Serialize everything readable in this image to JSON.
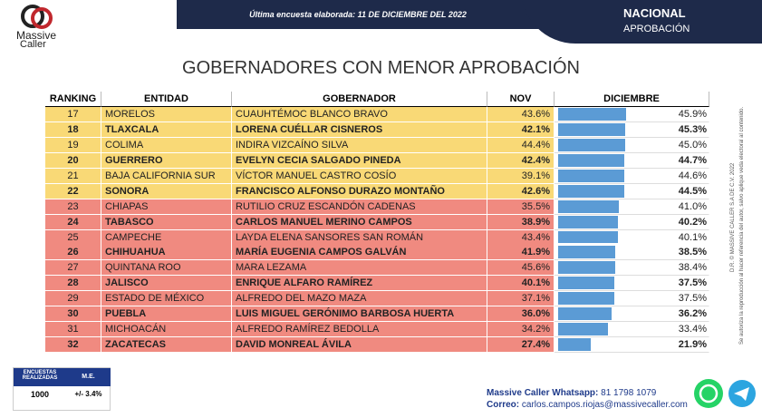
{
  "header": {
    "logo_top": "Massive",
    "logo_bottom": "Caller",
    "survey_label": "Última encuesta elaborada:",
    "survey_date": "11 DE DICIEMBRE DEL 2022",
    "scope": "NACIONAL",
    "metric": "APROBACIÓN"
  },
  "title": "GOBERNADORES CON MENOR APROBACIÓN",
  "table": {
    "columns": [
      "RANKING",
      "ENTIDAD",
      "GOBERNADOR",
      "NOV",
      "DICIEMBRE"
    ],
    "bar_color": "#5b9bd5",
    "rows": [
      {
        "rank": 17,
        "entidad": "MORELOS",
        "gobernador": "CUAUHTÉMOC BLANCO BRAVO",
        "nov": "43.6%",
        "dic": {
          "value": 45.9,
          "label": "45.9%"
        },
        "bold": false,
        "color": "#f9d976"
      },
      {
        "rank": 18,
        "entidad": "TLAXCALA",
        "gobernador": "LORENA CUÉLLAR CISNEROS",
        "nov": "42.1%",
        "dic": {
          "value": 45.3,
          "label": "45.3%"
        },
        "bold": true,
        "color": "#f9d976"
      },
      {
        "rank": 19,
        "entidad": "COLIMA",
        "gobernador": "INDIRA VIZCAÍNO SILVA",
        "nov": "44.4%",
        "dic": {
          "value": 45.0,
          "label": "45.0%"
        },
        "bold": false,
        "color": "#f9d976"
      },
      {
        "rank": 20,
        "entidad": "GUERRERO",
        "gobernador": "EVELYN CECIA SALGADO PINEDA",
        "nov": "42.4%",
        "dic": {
          "value": 44.7,
          "label": "44.7%"
        },
        "bold": true,
        "color": "#f9d976"
      },
      {
        "rank": 21,
        "entidad": "BAJA CALIFORNIA SUR",
        "gobernador": "VÍCTOR MANUEL CASTRO COSÍO",
        "nov": "39.1%",
        "dic": {
          "value": 44.6,
          "label": "44.6%"
        },
        "bold": false,
        "color": "#f9d976"
      },
      {
        "rank": 22,
        "entidad": "SONORA",
        "gobernador": "FRANCISCO ALFONSO DURAZO MONTAÑO",
        "nov": "42.6%",
        "dic": {
          "value": 44.5,
          "label": "44.5%"
        },
        "bold": true,
        "color": "#f9d976"
      },
      {
        "rank": 23,
        "entidad": "CHIAPAS",
        "gobernador": "RUTILIO CRUZ ESCANDÓN CADENAS",
        "nov": "35.5%",
        "dic": {
          "value": 41.0,
          "label": "41.0%"
        },
        "bold": false,
        "color": "#f08a80"
      },
      {
        "rank": 24,
        "entidad": "TABASCO",
        "gobernador": "CARLOS MANUEL MERINO CAMPOS",
        "nov": "38.9%",
        "dic": {
          "value": 40.2,
          "label": "40.2%"
        },
        "bold": true,
        "color": "#f08a80"
      },
      {
        "rank": 25,
        "entidad": "CAMPECHE",
        "gobernador": "LAYDA ELENA SANSORES SAN ROMÁN",
        "nov": "43.4%",
        "dic": {
          "value": 40.1,
          "label": "40.1%"
        },
        "bold": false,
        "color": "#f08a80"
      },
      {
        "rank": 26,
        "entidad": "CHIHUAHUA",
        "gobernador": "MARÍA EUGENIA CAMPOS GALVÁN",
        "nov": "41.9%",
        "dic": {
          "value": 38.5,
          "label": "38.5%"
        },
        "bold": true,
        "color": "#f08a80"
      },
      {
        "rank": 27,
        "entidad": "QUINTANA ROO",
        "gobernador": "MARA LEZAMA",
        "nov": "45.6%",
        "dic": {
          "value": 38.4,
          "label": "38.4%"
        },
        "bold": false,
        "color": "#f08a80"
      },
      {
        "rank": 28,
        "entidad": "JALISCO",
        "gobernador": "ENRIQUE ALFARO RAMÍREZ",
        "nov": "40.1%",
        "dic": {
          "value": 37.5,
          "label": "37.5%"
        },
        "bold": true,
        "color": "#f08a80"
      },
      {
        "rank": 29,
        "entidad": "ESTADO DE MÉXICO",
        "gobernador": "ALFREDO DEL MAZO MAZA",
        "nov": "37.1%",
        "dic": {
          "value": 37.5,
          "label": "37.5%"
        },
        "bold": false,
        "color": "#f08a80"
      },
      {
        "rank": 30,
        "entidad": "PUEBLA",
        "gobernador": "LUIS MIGUEL GERÓNIMO BARBOSA HUERTA",
        "nov": "36.0%",
        "dic": {
          "value": 36.2,
          "label": "36.2%"
        },
        "bold": true,
        "color": "#f08a80"
      },
      {
        "rank": 31,
        "entidad": "MICHOACÁN",
        "gobernador": "ALFREDO RAMÍREZ BEDOLLA",
        "nov": "34.2%",
        "dic": {
          "value": 33.4,
          "label": "33.4%"
        },
        "bold": false,
        "color": "#f08a80"
      },
      {
        "rank": 32,
        "entidad": "ZACATECAS",
        "gobernador": "DAVID MONREAL ÁVILA",
        "nov": "27.4%",
        "dic": {
          "value": 21.9,
          "label": "21.9%"
        },
        "bold": true,
        "color": "#f08a80"
      }
    ]
  },
  "survey_box": {
    "headers": [
      "ENCUESTAS REALIZADAS",
      "M.E."
    ],
    "values": [
      "1000",
      "+/- 3.4%"
    ]
  },
  "contact": {
    "whatsapp_label": "Massive Caller Whatsapp:",
    "whatsapp": "81 1798 1079",
    "email_label": "Correo:",
    "email": "carlos.campos.riojas@massivecaller.com"
  },
  "copyright": "D.R. © MASSIVE CALLER S.A DE C.V. 2022",
  "notice": "Se autoriza la reproducción al hacer referencia del autor, salvo aplique veda electoral al contenido."
}
